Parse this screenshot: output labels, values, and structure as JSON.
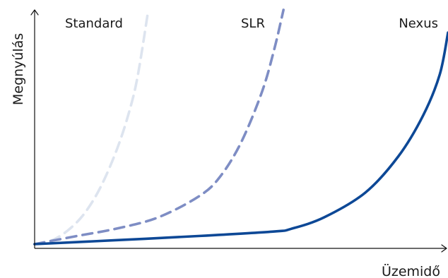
{
  "chart_data": {
    "type": "line",
    "title": "",
    "xlabel": "Üzemidő",
    "ylabel": "Megnyúlás",
    "xlim": [
      0,
      100
    ],
    "ylim": [
      0,
      100
    ],
    "grid": false,
    "legend": "none",
    "axis_ticks": false,
    "series": [
      {
        "name": "Standard",
        "color": "#dde4ef",
        "dash": "dashed",
        "x": [
          0,
          4,
          8,
          12,
          16,
          20,
          23,
          25,
          27.5
        ],
        "y": [
          0,
          1.5,
          5.8,
          13,
          24.5,
          40.9,
          57.3,
          72.4,
          100
        ]
      },
      {
        "name": "SLR",
        "color": "#7e8dc4",
        "dash": "dashed",
        "x": [
          0,
          10,
          20,
          30,
          40,
          45,
          50,
          55,
          58,
          60.2
        ],
        "y": [
          0,
          3.4,
          6.7,
          11.5,
          20.7,
          29.1,
          43.6,
          65,
          83.4,
          100
        ]
      },
      {
        "name": "Nexus",
        "color": "#0d4896",
        "dash": "solid",
        "x": [
          0,
          20,
          40,
          58,
          62,
          70,
          80,
          88,
          94,
          98,
          100
        ],
        "y": [
          0,
          1.7,
          3.5,
          5.4,
          6.5,
          11.4,
          22,
          37.5,
          55,
          72.4,
          90.3
        ]
      }
    ]
  }
}
